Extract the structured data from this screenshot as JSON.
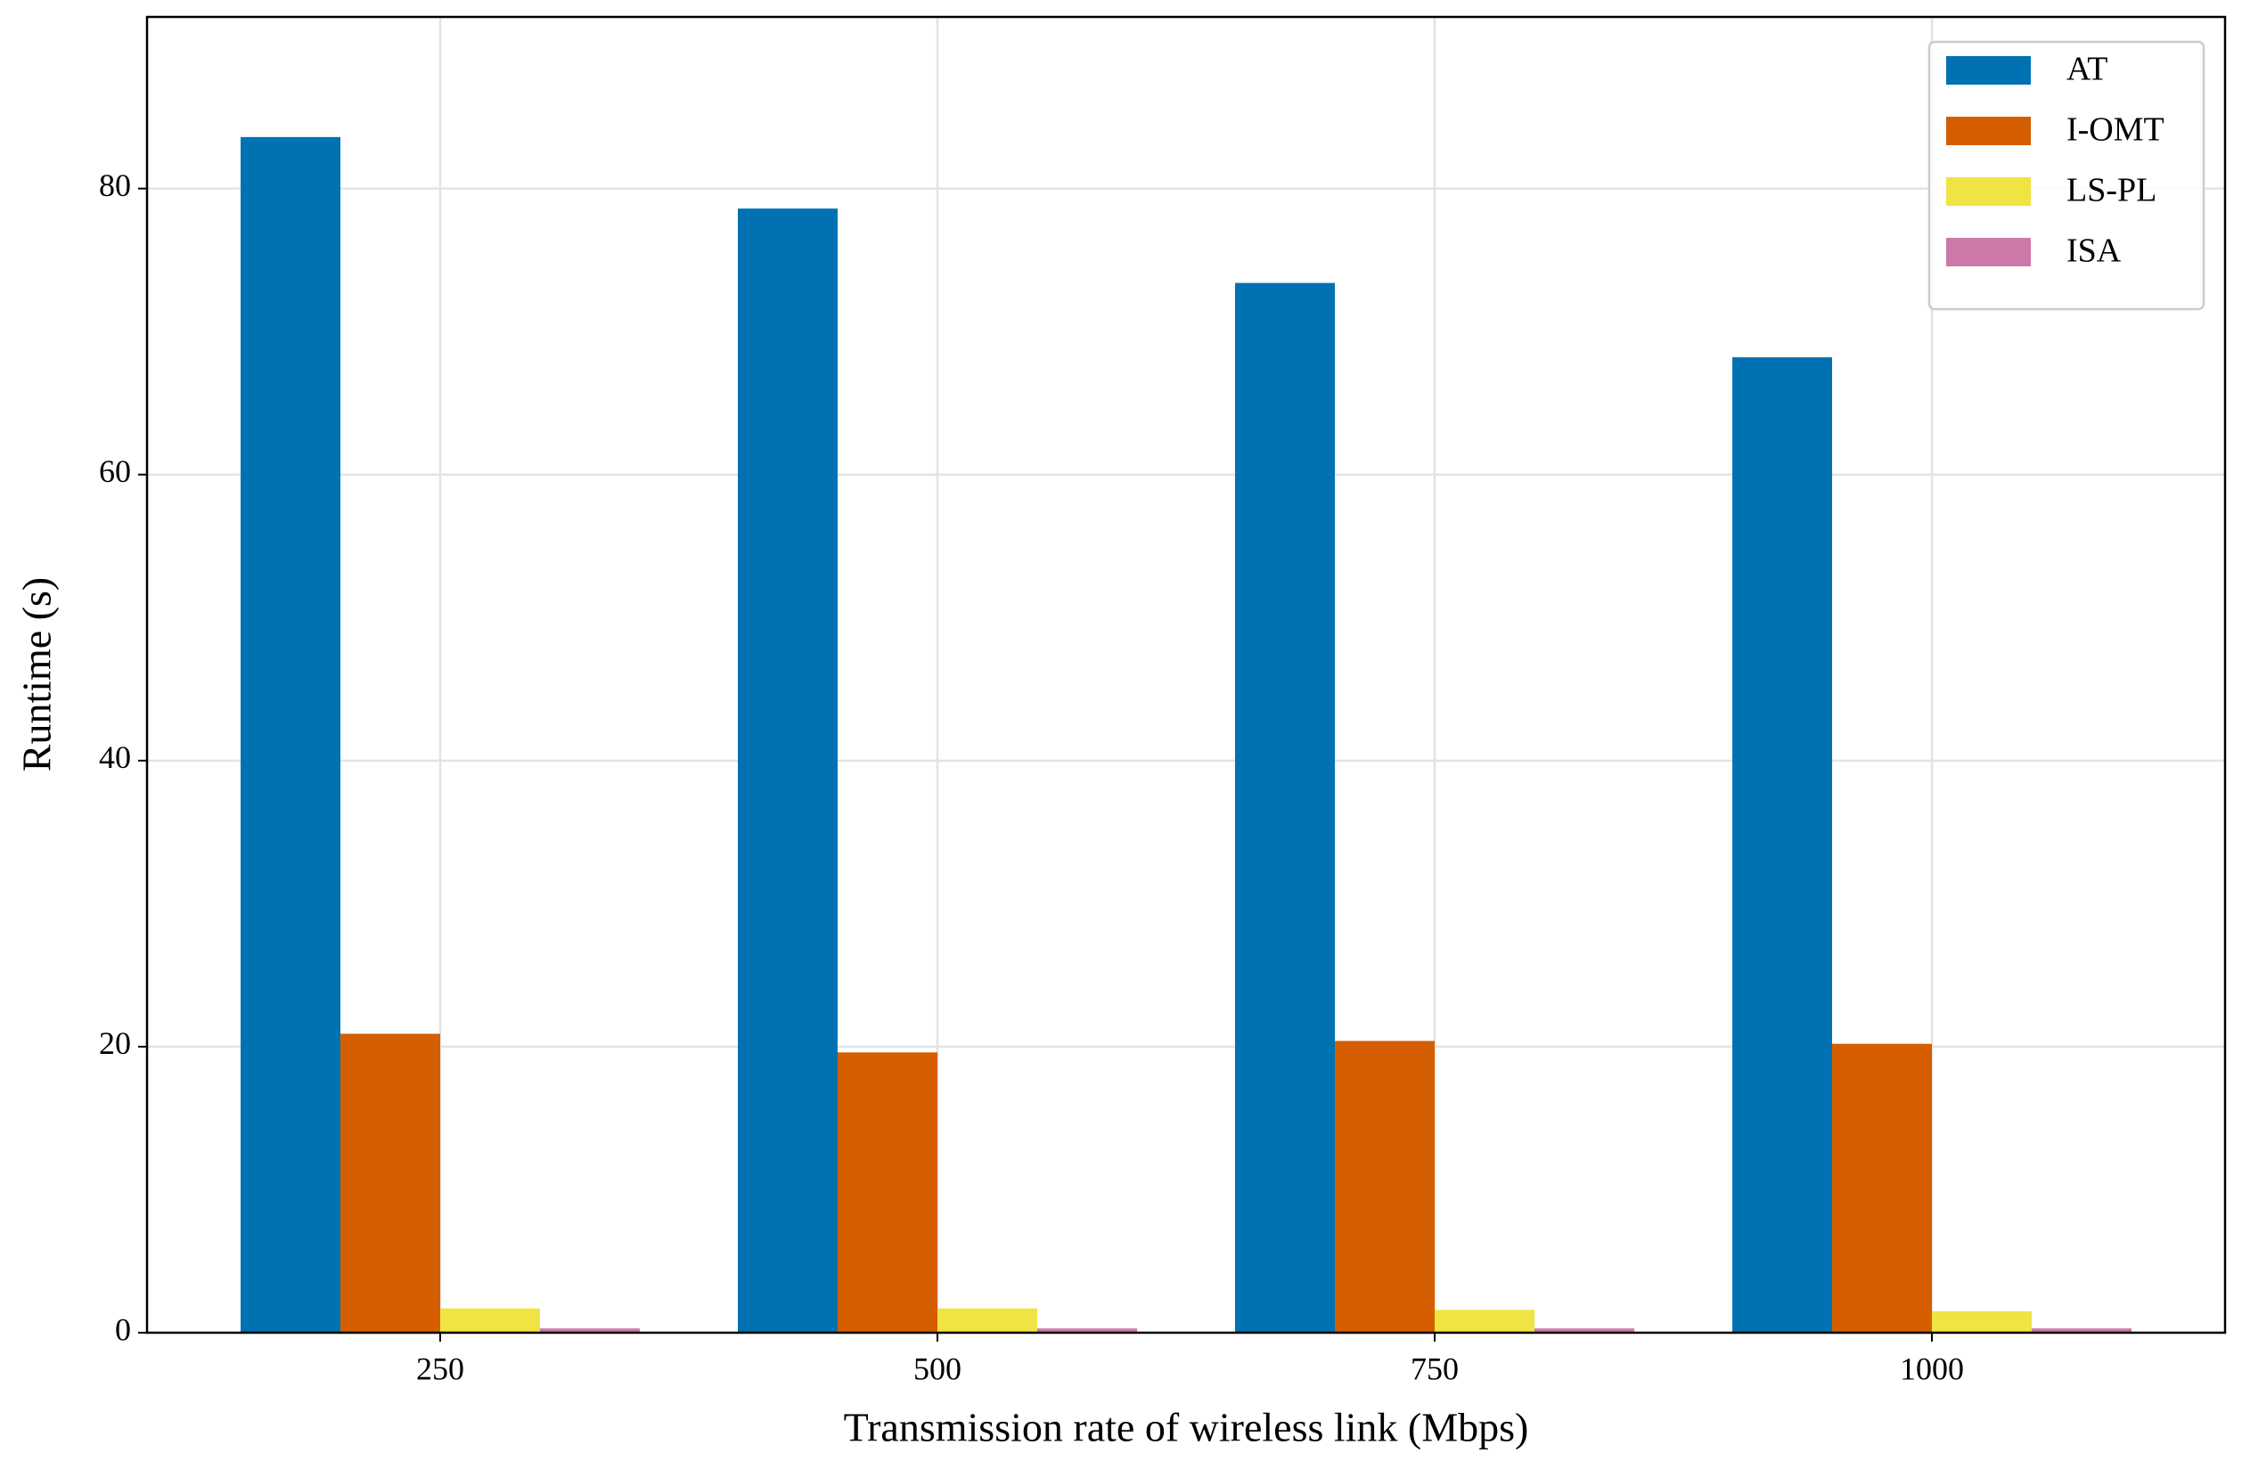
{
  "chart_data": {
    "type": "bar",
    "x_label": "Transmission rate of wireless link (Mbps)",
    "y_label": "Runtime (s)",
    "categories": [
      "250",
      "500",
      "750",
      "1000"
    ],
    "series": [
      {
        "name": "AT",
        "color": "#0072b2",
        "values": [
          83.6,
          78.6,
          73.4,
          68.2
        ]
      },
      {
        "name": "I-OMT",
        "color": "#d55e00",
        "values": [
          20.9,
          19.6,
          20.4,
          20.2
        ]
      },
      {
        "name": "LS-PL",
        "color": "#f0e442",
        "values": [
          1.7,
          1.7,
          1.6,
          1.5
        ]
      },
      {
        "name": "ISA",
        "color": "#cc79a7",
        "values": [
          0.3,
          0.3,
          0.3,
          0.3
        ]
      }
    ],
    "ylim": [
      0,
      92
    ],
    "yticks": [
      0,
      20,
      40,
      60,
      80
    ],
    "grid": true,
    "legend_position": "upper-right"
  }
}
